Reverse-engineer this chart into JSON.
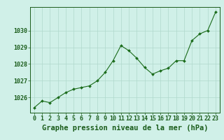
{
  "hours": [
    0,
    1,
    2,
    3,
    4,
    5,
    6,
    7,
    8,
    9,
    10,
    11,
    12,
    13,
    14,
    15,
    16,
    17,
    18,
    19,
    20,
    21,
    22,
    23
  ],
  "pressure": [
    1025.4,
    1025.8,
    1025.7,
    1026.0,
    1026.3,
    1026.5,
    1026.6,
    1026.7,
    1027.0,
    1027.5,
    1028.2,
    1029.1,
    1028.8,
    1028.35,
    1027.8,
    1027.4,
    1027.6,
    1027.75,
    1028.2,
    1028.2,
    1029.4,
    1029.8,
    1030.0,
    1031.1
  ],
  "line_color": "#1a6b1a",
  "marker": "D",
  "marker_size": 2.0,
  "background_color": "#d0f0e8",
  "grid_color": "#b0d8cc",
  "axis_color": "#1a5c1a",
  "title": "Graphe pression niveau de la mer (hPa)",
  "ylabel_vals": [
    1026,
    1027,
    1028,
    1029,
    1030
  ],
  "ylim": [
    1025.1,
    1031.4
  ],
  "xlim": [
    -0.5,
    23.5
  ],
  "title_fontsize": 7.5,
  "tick_fontsize": 6.0
}
